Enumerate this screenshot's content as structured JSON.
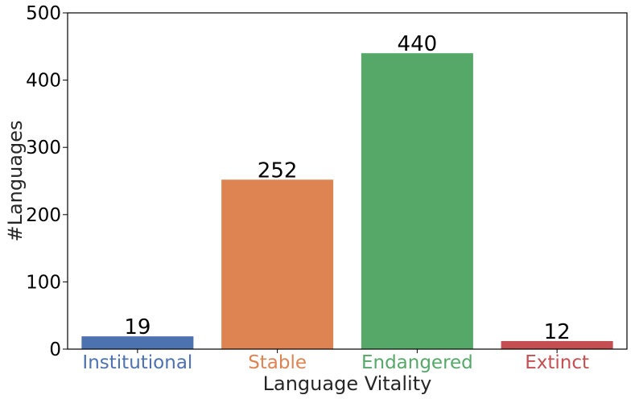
{
  "chart_data": {
    "type": "bar",
    "title": "",
    "xlabel": "Language Vitality",
    "ylabel": "#Languages",
    "ylim": [
      0,
      500
    ],
    "yticks": [
      0,
      100,
      200,
      300,
      400,
      500
    ],
    "grid": false,
    "categories": [
      "Institutional",
      "Stable",
      "Endangered",
      "Extinct"
    ],
    "values": [
      19,
      252,
      440,
      12
    ],
    "data_labels": [
      "19",
      "252",
      "440",
      "12"
    ],
    "colors": [
      "#4C72B0",
      "#DD8452",
      "#55A868",
      "#C44E52"
    ],
    "tick_label_colors": [
      "#4C72B0",
      "#DD8452",
      "#55A868",
      "#C44E52"
    ]
  }
}
